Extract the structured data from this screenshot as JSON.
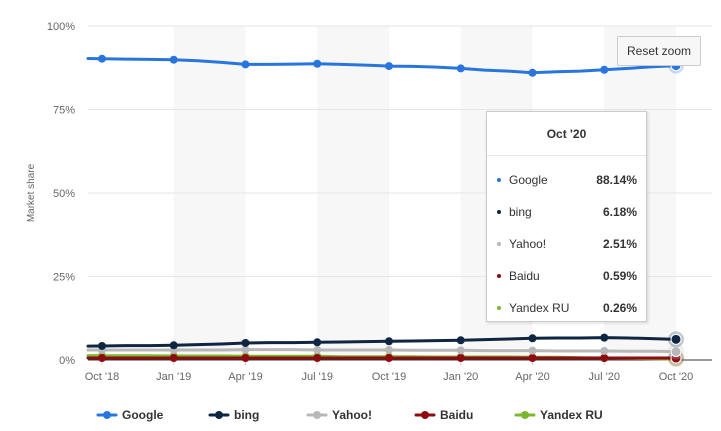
{
  "chart_data": {
    "type": "line",
    "x": [
      "Oct '18",
      "Nov '18",
      "Dec '18",
      "Jan '19",
      "Feb '19",
      "Mar '19",
      "Apr '19",
      "May '19",
      "Jun '19",
      "Jul '19",
      "Aug '19",
      "Sep '19",
      "Oct '19",
      "Nov '19",
      "Dec '19",
      "Jan '20",
      "Feb '20",
      "Mar '20",
      "Apr '20",
      "May '20",
      "Jun '20",
      "Jul '20",
      "Aug '20",
      "Sep '20",
      "Oct '20"
    ],
    "x_ticks": [
      "Oct '18",
      "Jan '19",
      "Apr '19",
      "Jul '19",
      "Oct '19",
      "Jan '20",
      "Apr '20",
      "Jul '20",
      "Oct '20"
    ],
    "ylabel": "Market share",
    "ylim": [
      0,
      100
    ],
    "y_ticks": [
      "0%",
      "25%",
      "50%",
      "75%",
      "100%"
    ],
    "legend_position": "bottom-center",
    "series": [
      {
        "name": "Google",
        "color": "#2876dd",
        "values": [
          90.2,
          90.1,
          90.0,
          89.9,
          89.6,
          89.1,
          88.5,
          88.5,
          88.6,
          88.7,
          88.5,
          88.3,
          88.0,
          87.9,
          87.7,
          87.3,
          86.8,
          86.5,
          86.0,
          86.3,
          86.5,
          86.9,
          87.3,
          87.8,
          88.14
        ]
      },
      {
        "name": "bing",
        "color": "#0f2642",
        "values": [
          4.2,
          4.3,
          4.3,
          4.4,
          4.6,
          4.8,
          5.1,
          5.2,
          5.2,
          5.3,
          5.4,
          5.5,
          5.6,
          5.7,
          5.8,
          5.9,
          6.1,
          6.3,
          6.5,
          6.6,
          6.6,
          6.7,
          6.6,
          6.4,
          6.18
        ]
      },
      {
        "name": "Yahoo!",
        "color": "#b8b8b8",
        "values": [
          3.0,
          3.0,
          3.0,
          3.0,
          3.0,
          3.0,
          3.1,
          3.1,
          3.1,
          3.0,
          3.0,
          3.0,
          3.0,
          2.9,
          2.9,
          2.9,
          2.8,
          2.8,
          2.8,
          2.7,
          2.7,
          2.7,
          2.6,
          2.6,
          2.51
        ]
      },
      {
        "name": "Baidu",
        "color": "#8e0b11",
        "values": [
          0.6,
          0.6,
          0.6,
          0.6,
          0.6,
          0.6,
          0.6,
          0.6,
          0.6,
          0.6,
          0.6,
          0.6,
          0.6,
          0.6,
          0.6,
          0.6,
          0.6,
          0.6,
          0.6,
          0.6,
          0.6,
          0.6,
          0.6,
          0.6,
          0.59
        ]
      },
      {
        "name": "Yandex RU",
        "color": "#7cb82f",
        "values": [
          1.3,
          1.3,
          1.3,
          1.2,
          1.2,
          1.2,
          1.1,
          1.1,
          1.1,
          1.1,
          1.0,
          1.0,
          1.0,
          1.0,
          0.9,
          0.9,
          0.9,
          0.9,
          0.8,
          0.8,
          0.7,
          0.6,
          0.5,
          0.4,
          0.26
        ]
      }
    ],
    "tooltip": {
      "title": "Oct '20",
      "rows": [
        {
          "name": "Google",
          "value": "88.14%",
          "color": "#2876dd"
        },
        {
          "name": "bing",
          "value": "6.18%",
          "color": "#0f2642"
        },
        {
          "name": "Yahoo!",
          "value": "2.51%",
          "color": "#b8b8b8"
        },
        {
          "name": "Baidu",
          "value": "0.59%",
          "color": "#8e0b11"
        },
        {
          "name": "Yandex RU",
          "value": "0.26%",
          "color": "#7cb82f"
        }
      ]
    }
  },
  "controls": {
    "reset_zoom_label": "Reset zoom"
  },
  "colors": {
    "grid": "#e6e6e6",
    "alt_band": "#f7f7f7",
    "axis_text": "#666666"
  }
}
